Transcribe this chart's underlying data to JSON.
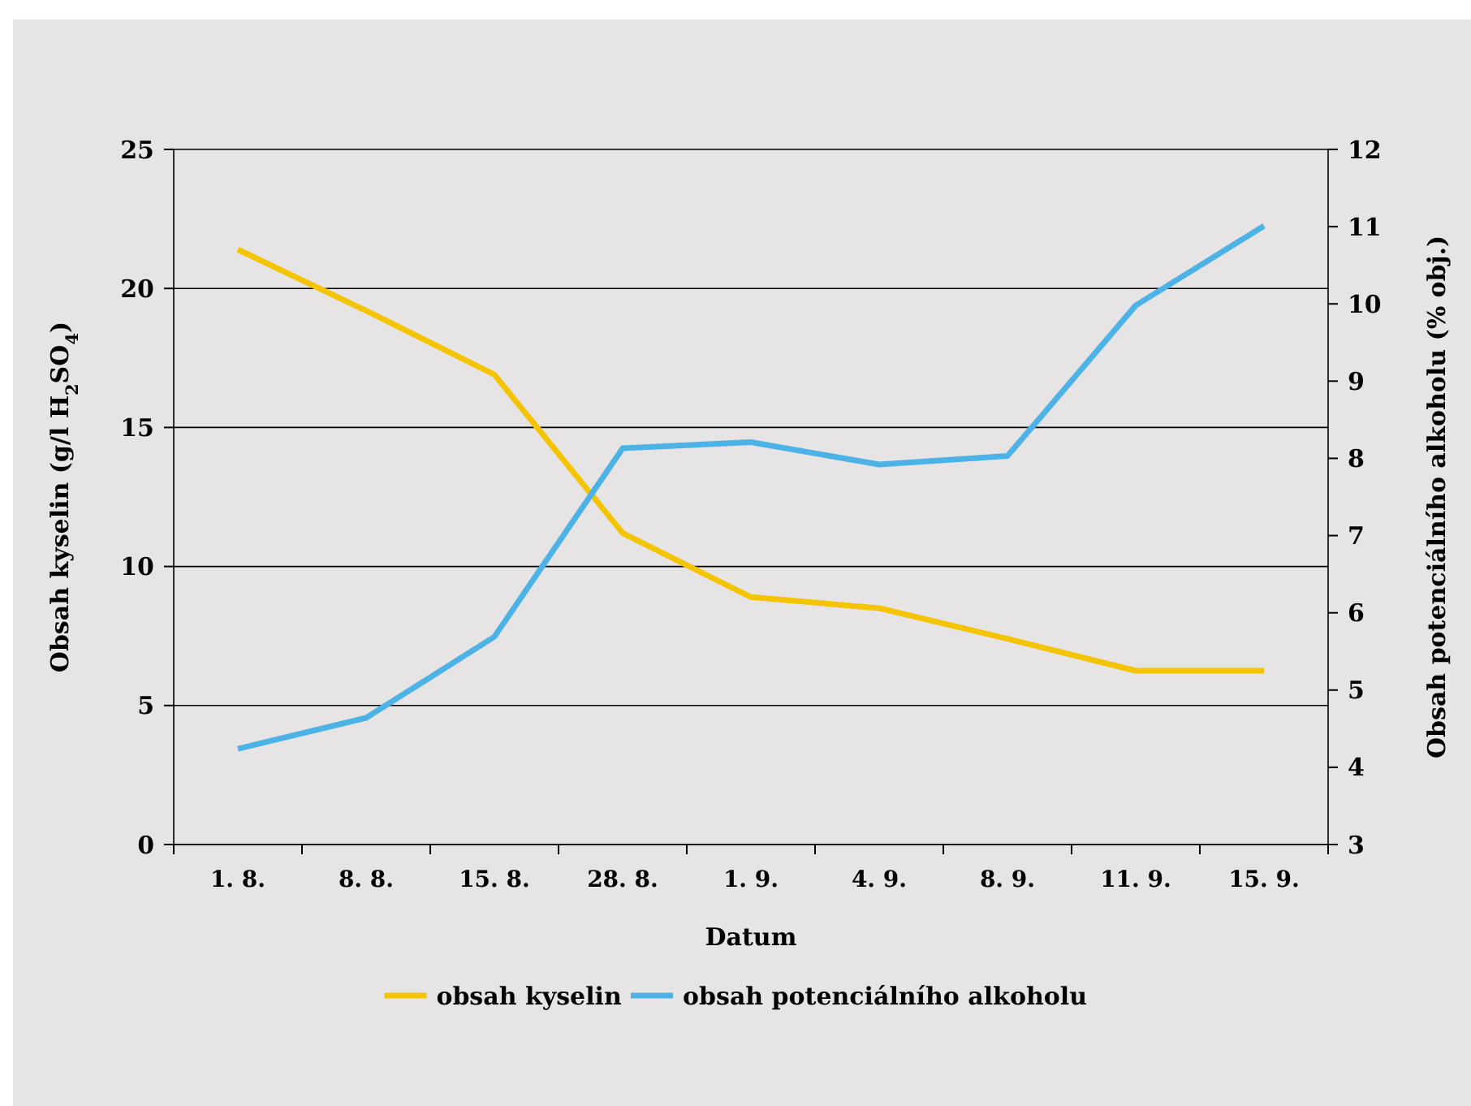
{
  "chart_data": {
    "type": "line",
    "xlabel": "Datum",
    "ylabel": "Obsah kyselin (g/l H$_{2}$SO$_{4}$)",
    "y2label": "Obsah potenciálního alkoholu (% obj.)",
    "categories": [
      "1. 8.",
      "8. 8.",
      "15. 8.",
      "28. 8.",
      "1. 9.",
      "4. 9.",
      "8. 9.",
      "11. 9.",
      "15. 9."
    ],
    "series": [
      {
        "name": "obsah kyselin",
        "color": "#f5c400",
        "values": [
          21.4,
          19.2,
          16.9,
          11.2,
          8.9,
          8.5,
          7.4,
          6.25,
          6.25
        ]
      },
      {
        "name": "obsah potenciálního alkoholu",
        "color": "#4db3e6",
        "axis": "y2",
        "values": [
          4.24,
          4.64,
          5.69,
          8.13,
          8.21,
          7.92,
          8.03,
          9.98,
          11.01
        ]
      }
    ],
    "ylim": [
      0,
      25
    ],
    "yticks": [
      0,
      5,
      10,
      15,
      20,
      25
    ],
    "y2lim": [
      3,
      12
    ],
    "y2ticks": [
      3,
      4,
      5,
      6,
      7,
      8,
      9,
      10,
      11,
      12
    ],
    "grid": "y",
    "legend": "bottom",
    "marker": "none",
    "line_style": "solid"
  }
}
